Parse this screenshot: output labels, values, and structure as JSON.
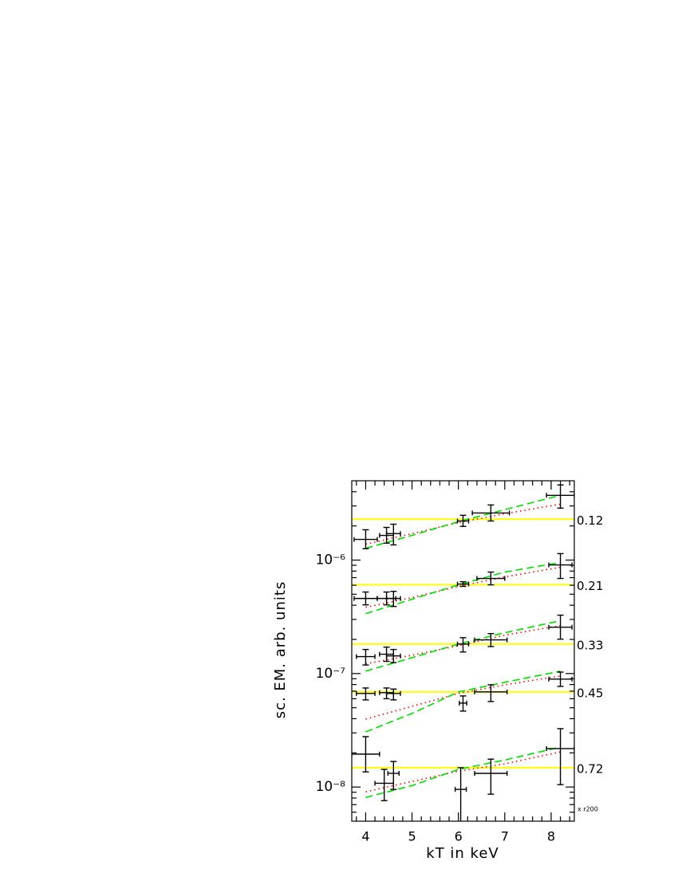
{
  "chart_data": {
    "type": "errorbar",
    "xlabel": "kT  in  keV",
    "ylabel": "sc.  EM.  arb.  units",
    "annotation": "x r200",
    "log_y": true,
    "xlim": [
      3.7,
      8.5
    ],
    "ylim": [
      5e-09,
      5e-06
    ],
    "xticks": [
      4,
      5,
      6,
      7,
      8
    ],
    "xminorticks": [
      3.8,
      4.2,
      4.4,
      4.6,
      4.8,
      5.2,
      5.4,
      5.6,
      5.8,
      6.2,
      6.4,
      6.6,
      6.8,
      7.2,
      7.4,
      7.6,
      7.8,
      8.2,
      8.4
    ],
    "yticks": [
      {
        "value": 1e-08,
        "label": "10⁻⁸"
      },
      {
        "value": 1e-07,
        "label": "10⁻⁷"
      },
      {
        "value": 1e-06,
        "label": "10⁻⁶"
      }
    ],
    "yminorticks": [
      6e-09,
      7e-09,
      8e-09,
      9e-09,
      2e-08,
      3e-08,
      4e-08,
      5e-08,
      6e-08,
      7e-08,
      8e-08,
      9e-08,
      2e-07,
      3e-07,
      4e-07,
      5e-07,
      6e-07,
      7e-07,
      8e-07,
      9e-07,
      2e-06,
      3e-06,
      4e-06
    ],
    "point_color": "#000000",
    "level_color": "#ffff00",
    "dashed_color": "#00dd00",
    "dotted_color": "#ff0000",
    "model_x": [
      4,
      5,
      6,
      7,
      8.2
    ],
    "groups": [
      {
        "label": "0.12",
        "level": 2.29e-06,
        "x": [
          4.0,
          4.45,
          4.6,
          6.1,
          6.7,
          8.2
        ],
        "xerr": [
          0.25,
          0.15,
          0.15,
          0.12,
          0.4,
          0.3
        ],
        "y": [
          1.52e-06,
          1.65e-06,
          1.71e-06,
          2.21e-06,
          2.6e-06,
          3.72e-06
        ],
        "ylo": [
          1.26e-06,
          1.41e-06,
          1.36e-06,
          1.98e-06,
          2.21e-06,
          2.87e-06
        ],
        "yhi": [
          1.85e-06,
          1.94e-06,
          2.07e-06,
          2.48e-06,
          3.06e-06,
          4.59e-06
        ],
        "dashed": [
          1.27e-06,
          1.65e-06,
          2.18e-06,
          2.78e-06,
          3.72e-06
        ],
        "dotted": [
          1.38e-06,
          1.71e-06,
          2.14e-06,
          2.56e-06,
          3.11e-06
        ]
      },
      {
        "label": "0.21",
        "level": 6.05e-07,
        "x": [
          4.0,
          4.45,
          4.6,
          6.1,
          6.7,
          8.2
        ],
        "xerr": [
          0.25,
          0.2,
          0.15,
          0.12,
          0.3,
          0.25
        ],
        "y": [
          4.59e-07,
          4.59e-07,
          4.59e-07,
          6.15e-07,
          6.89e-07,
          9.07e-07
        ],
        "ylo": [
          4.03e-07,
          4.03e-07,
          3.9e-07,
          5.86e-07,
          6.05e-07,
          6.89e-07
        ],
        "yhi": [
          5.23e-07,
          5.23e-07,
          5.3e-07,
          6.45e-07,
          7.84e-07,
          1.14e-06
        ],
        "dashed": [
          3.37e-07,
          4.52e-07,
          6.05e-07,
          7.84e-07,
          9.52e-07
        ],
        "dotted": [
          3.84e-07,
          4.67e-07,
          5.86e-07,
          7.11e-07,
          8.64e-07
        ]
      },
      {
        "label": "0.33",
        "level": 1.82e-07,
        "x": [
          4.0,
          4.45,
          4.6,
          6.1,
          6.7,
          8.2
        ],
        "xerr": [
          0.2,
          0.15,
          0.15,
          0.12,
          0.35,
          0.25
        ],
        "y": [
          1.41e-07,
          1.48e-07,
          1.43e-07,
          1.82e-07,
          1.98e-07,
          2.56e-07
        ],
        "ylo": [
          1.19e-07,
          1.28e-07,
          1.25e-07,
          1.55e-07,
          1.73e-07,
          2.01e-07
        ],
        "yhi": [
          1.63e-07,
          1.71e-07,
          1.63e-07,
          2.07e-07,
          2.25e-07,
          3.27e-07
        ],
        "dashed": [
          1.05e-07,
          1.38e-07,
          1.82e-07,
          2.29e-07,
          2.92e-07
        ],
        "dotted": [
          1.22e-07,
          1.45e-07,
          1.76e-07,
          2.18e-07,
          2.65e-07
        ]
      },
      {
        "label": "0.45",
        "level": 6.89e-08,
        "x": [
          4.0,
          4.45,
          4.6,
          6.1,
          6.7,
          8.2
        ],
        "xerr": [
          0.2,
          0.15,
          0.15,
          0.08,
          0.35,
          0.25
        ],
        "y": [
          6.67e-08,
          6.78e-08,
          6.67e-08,
          5.49e-08,
          6.89e-08,
          8.93e-08
        ],
        "ylo": [
          5.86e-08,
          6e-08,
          5.86e-08,
          4.67e-08,
          5.67e-08,
          7.71e-08
        ],
        "yhi": [
          7.46e-08,
          7.46e-08,
          7.3e-08,
          6.35e-08,
          7.96e-08,
          1.03e-07
        ],
        "dashed": [
          3.06e-08,
          4.45e-08,
          6.89e-08,
          8.37e-08,
          1.05e-07
        ],
        "dotted": [
          3.97e-08,
          5.14e-08,
          6.67e-08,
          7.96e-08,
          9.53e-08
        ]
      },
      {
        "label": "0.72",
        "level": 1.48e-08,
        "x": [
          4.0,
          4.4,
          4.6,
          6.05,
          6.7,
          8.2
        ],
        "xerr": [
          0.3,
          0.2,
          0.12,
          0.12,
          0.35,
          0.3
        ],
        "y": [
          1.95e-08,
          1.08e-08,
          1.32e-08,
          9.53e-09,
          1.32e-08,
          2.18e-08
        ],
        "ylo": [
          1.36e-08,
          7.59e-09,
          9.53e-09,
          4.5e-09,
          8.65e-09,
          1.05e-08
        ],
        "yhi": [
          2.78e-08,
          1.43e-08,
          1.68e-08,
          1.48e-08,
          1.76e-08,
          3.27e-08
        ],
        "dashed": [
          8.09e-09,
          1.03e-08,
          1.43e-08,
          1.73e-08,
          2.25e-08
        ],
        "dotted": [
          9.08e-09,
          1.12e-08,
          1.38e-08,
          1.6e-08,
          2.04e-08
        ]
      }
    ]
  }
}
